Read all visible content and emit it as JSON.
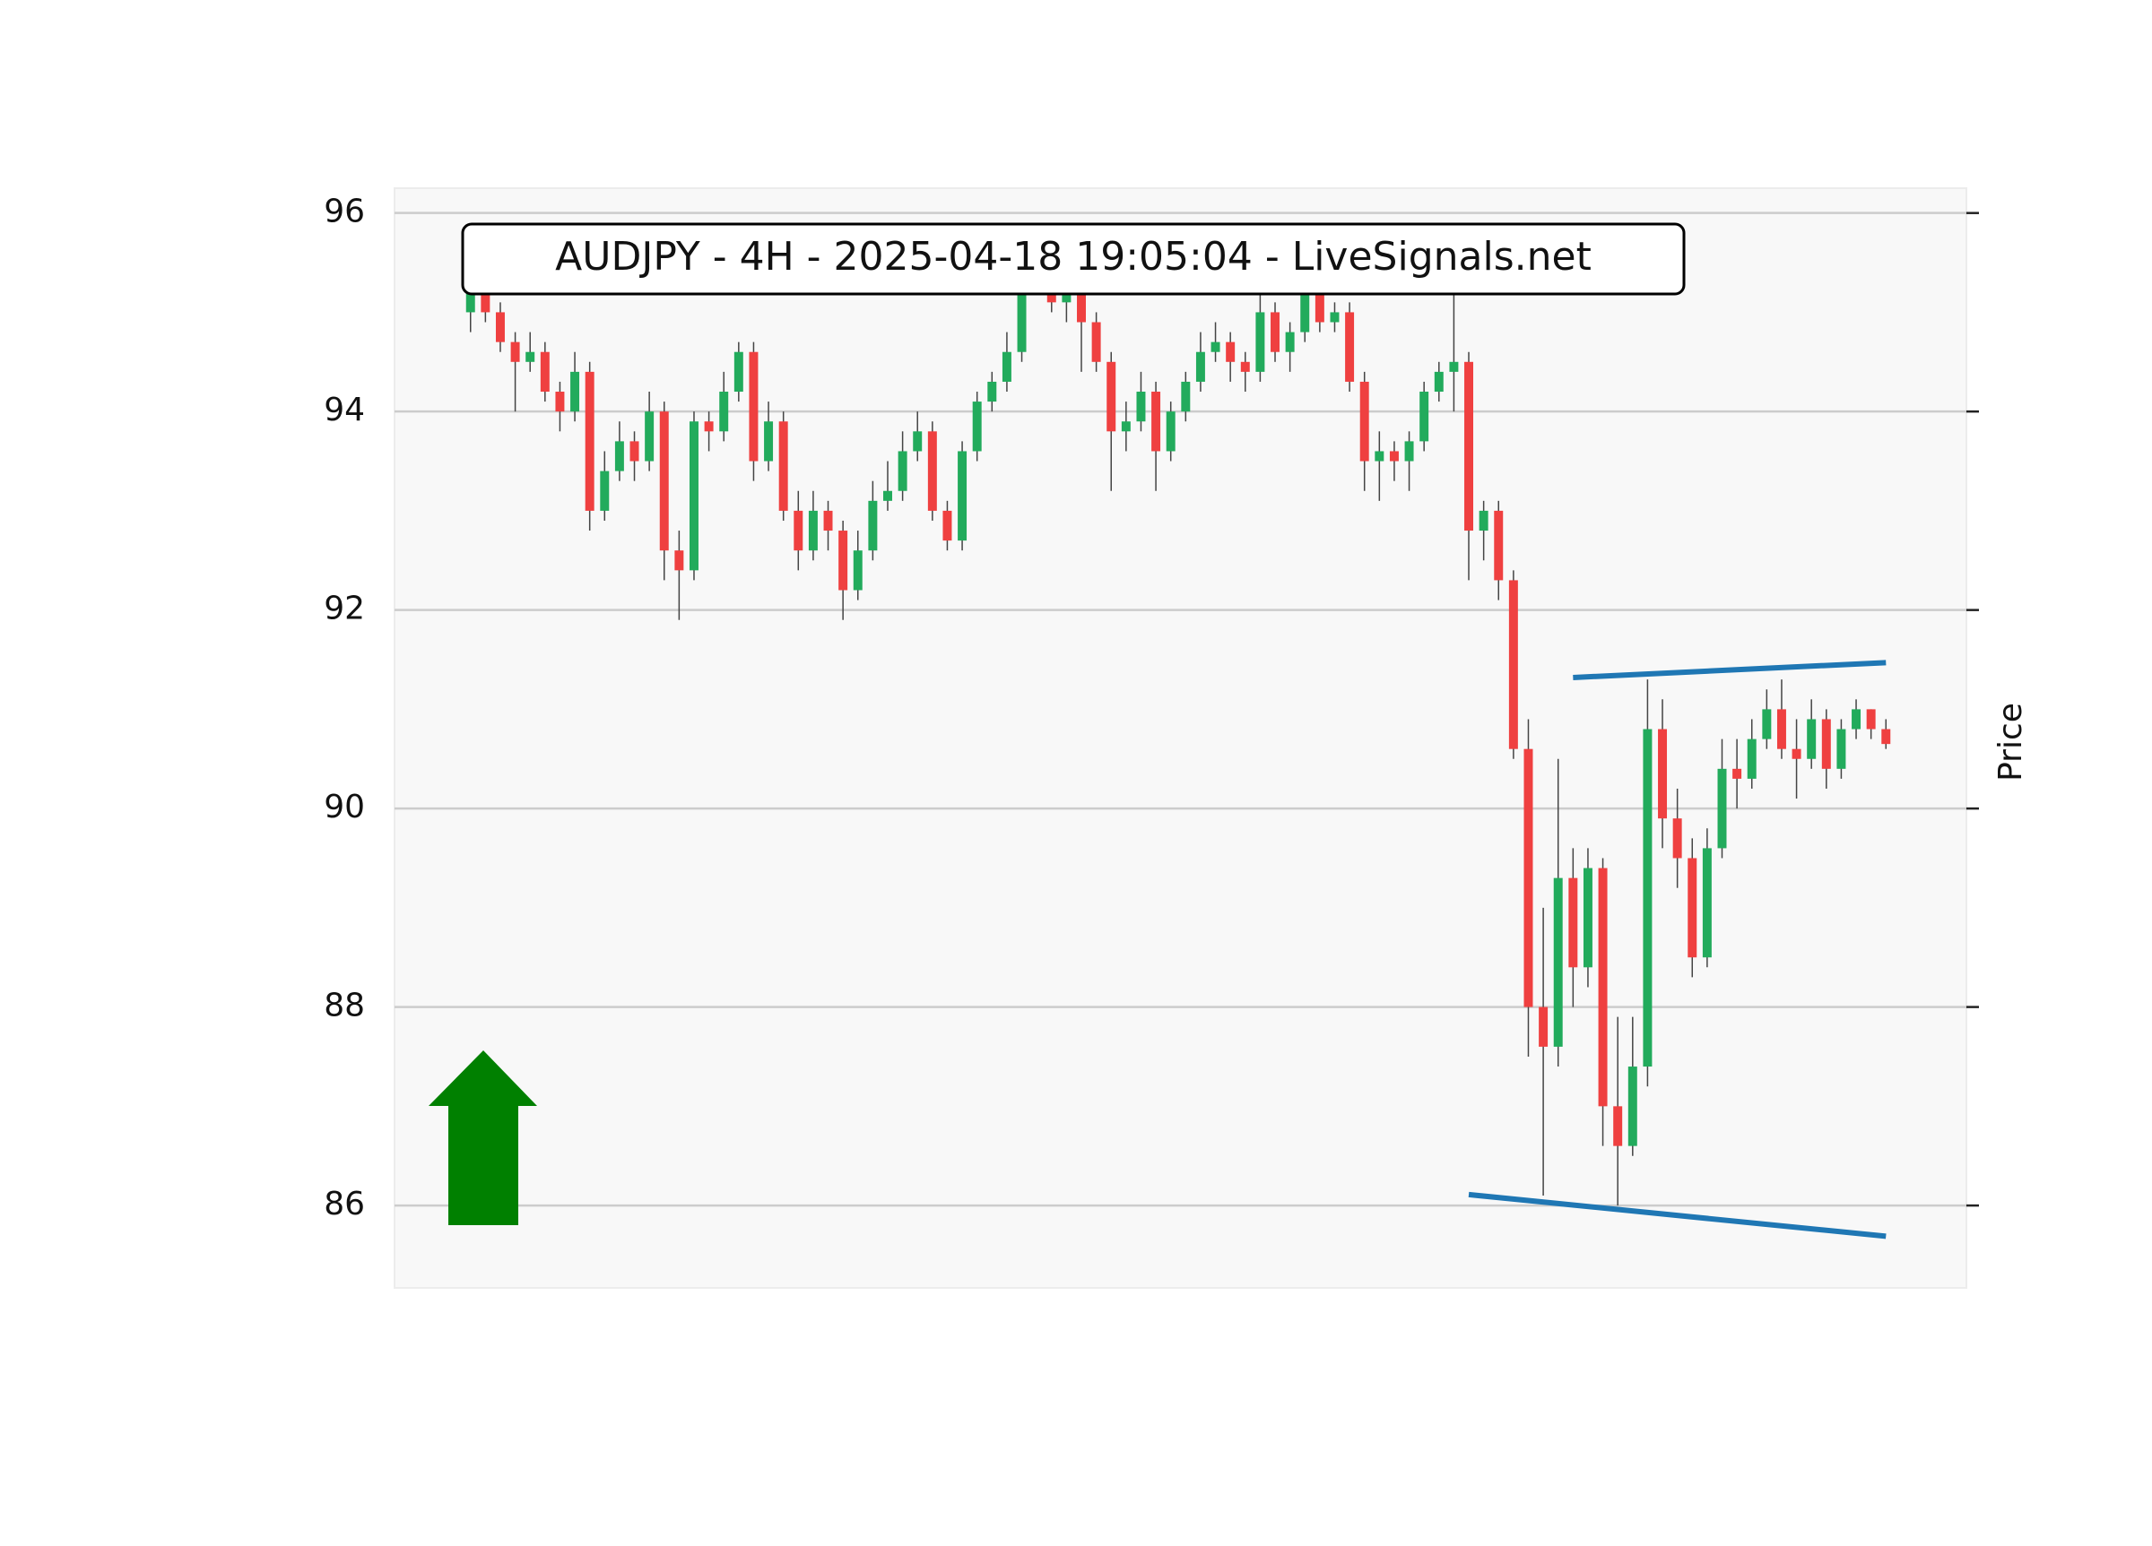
{
  "chart_data": {
    "type": "candlestick",
    "title": "AUDJPY - 4H - 2025-04-18 19:05:04 - LiveSignals.net",
    "y_label": "Price",
    "up_color": "#22ab5c",
    "down_color": "#ef4040",
    "ylim": [
      85.17,
      96.25
    ],
    "yticks": [
      86,
      88,
      90,
      92,
      94,
      96
    ],
    "xlim": [
      -5.1,
      100.4
    ],
    "grid": true,
    "ohlc": [
      [
        95.0,
        95.4,
        94.8,
        95.2
      ],
      [
        95.2,
        95.3,
        94.9,
        95.0
      ],
      [
        95.0,
        95.1,
        94.6,
        94.7
      ],
      [
        94.7,
        94.8,
        94.0,
        94.5
      ],
      [
        94.5,
        94.8,
        94.4,
        94.6
      ],
      [
        94.6,
        94.7,
        94.1,
        94.2
      ],
      [
        94.2,
        94.3,
        93.8,
        94.0
      ],
      [
        94.0,
        94.6,
        93.9,
        94.4
      ],
      [
        94.4,
        94.5,
        92.8,
        93.0
      ],
      [
        93.0,
        93.6,
        92.9,
        93.4
      ],
      [
        93.4,
        93.9,
        93.3,
        93.7
      ],
      [
        93.7,
        93.8,
        93.3,
        93.5
      ],
      [
        93.5,
        94.2,
        93.4,
        94.0
      ],
      [
        94.0,
        94.1,
        92.3,
        92.6
      ],
      [
        92.6,
        92.8,
        91.9,
        92.4
      ],
      [
        92.4,
        94.0,
        92.3,
        93.9
      ],
      [
        93.9,
        94.0,
        93.6,
        93.8
      ],
      [
        93.8,
        94.4,
        93.7,
        94.2
      ],
      [
        94.2,
        94.7,
        94.1,
        94.6
      ],
      [
        94.6,
        94.7,
        93.3,
        93.5
      ],
      [
        93.5,
        94.1,
        93.4,
        93.9
      ],
      [
        93.9,
        94.0,
        92.9,
        93.0
      ],
      [
        93.0,
        93.2,
        92.4,
        92.6
      ],
      [
        92.6,
        93.2,
        92.5,
        93.0
      ],
      [
        93.0,
        93.1,
        92.6,
        92.8
      ],
      [
        92.8,
        92.9,
        91.9,
        92.2
      ],
      [
        92.2,
        92.8,
        92.1,
        92.6
      ],
      [
        92.6,
        93.3,
        92.5,
        93.1
      ],
      [
        93.1,
        93.5,
        93.0,
        93.2
      ],
      [
        93.2,
        93.8,
        93.1,
        93.6
      ],
      [
        93.6,
        94.0,
        93.5,
        93.8
      ],
      [
        93.8,
        93.9,
        92.9,
        93.0
      ],
      [
        93.0,
        93.1,
        92.6,
        92.7
      ],
      [
        92.7,
        93.7,
        92.6,
        93.6
      ],
      [
        93.6,
        94.2,
        93.5,
        94.1
      ],
      [
        94.1,
        94.4,
        94.0,
        94.3
      ],
      [
        94.3,
        94.8,
        94.2,
        94.6
      ],
      [
        94.6,
        95.4,
        94.5,
        95.3
      ],
      [
        95.3,
        95.5,
        95.2,
        95.4
      ],
      [
        95.4,
        95.5,
        95.0,
        95.1
      ],
      [
        95.1,
        95.4,
        94.9,
        95.2
      ],
      [
        95.2,
        95.3,
        94.4,
        94.9
      ],
      [
        94.9,
        95.0,
        94.4,
        94.5
      ],
      [
        94.5,
        94.6,
        93.2,
        93.8
      ],
      [
        93.8,
        94.1,
        93.6,
        93.9
      ],
      [
        93.9,
        94.4,
        93.8,
        94.2
      ],
      [
        94.2,
        94.3,
        93.2,
        93.6
      ],
      [
        93.6,
        94.1,
        93.5,
        94.0
      ],
      [
        94.0,
        94.4,
        93.9,
        94.3
      ],
      [
        94.3,
        94.8,
        94.2,
        94.6
      ],
      [
        94.6,
        94.9,
        94.5,
        94.7
      ],
      [
        94.7,
        94.8,
        94.3,
        94.5
      ],
      [
        94.5,
        94.6,
        94.2,
        94.4
      ],
      [
        94.4,
        95.2,
        94.3,
        95.0
      ],
      [
        95.0,
        95.1,
        94.5,
        94.6
      ],
      [
        94.6,
        94.9,
        94.4,
        94.8
      ],
      [
        94.8,
        95.3,
        94.7,
        95.2
      ],
      [
        95.2,
        95.3,
        94.8,
        94.9
      ],
      [
        94.9,
        95.1,
        94.8,
        95.0
      ],
      [
        95.0,
        95.1,
        94.2,
        94.3
      ],
      [
        94.3,
        94.4,
        93.2,
        93.5
      ],
      [
        93.5,
        93.8,
        93.1,
        93.6
      ],
      [
        93.6,
        93.7,
        93.3,
        93.5
      ],
      [
        93.5,
        93.8,
        93.2,
        93.7
      ],
      [
        93.7,
        94.3,
        93.6,
        94.2
      ],
      [
        94.2,
        94.5,
        94.1,
        94.4
      ],
      [
        94.4,
        95.3,
        94.0,
        94.5
      ],
      [
        94.5,
        94.6,
        92.3,
        92.8
      ],
      [
        92.8,
        93.1,
        92.5,
        93.0
      ],
      [
        93.0,
        93.1,
        92.1,
        92.3
      ],
      [
        92.3,
        92.4,
        90.5,
        90.6
      ],
      [
        90.6,
        90.9,
        87.5,
        88.0
      ],
      [
        88.0,
        89.0,
        86.1,
        87.6
      ],
      [
        87.6,
        90.5,
        87.4,
        89.3
      ],
      [
        89.3,
        89.6,
        88.0,
        88.4
      ],
      [
        88.4,
        89.6,
        88.2,
        89.4
      ],
      [
        89.4,
        89.5,
        86.6,
        87.0
      ],
      [
        87.0,
        87.9,
        86.0,
        86.6
      ],
      [
        86.6,
        87.9,
        86.5,
        87.4
      ],
      [
        87.4,
        91.3,
        87.2,
        90.8
      ],
      [
        90.8,
        91.1,
        89.6,
        89.9
      ],
      [
        89.9,
        90.2,
        89.2,
        89.5
      ],
      [
        89.5,
        89.7,
        88.3,
        88.5
      ],
      [
        88.5,
        89.8,
        88.4,
        89.6
      ],
      [
        89.6,
        90.7,
        89.5,
        90.4
      ],
      [
        90.4,
        90.7,
        90.0,
        90.3
      ],
      [
        90.3,
        90.9,
        90.2,
        90.7
      ],
      [
        90.7,
        91.2,
        90.6,
        91.0
      ],
      [
        91.0,
        91.3,
        90.5,
        90.6
      ],
      [
        90.6,
        90.9,
        90.1,
        90.5
      ],
      [
        90.5,
        91.1,
        90.4,
        90.9
      ],
      [
        90.9,
        91.0,
        90.2,
        90.4
      ],
      [
        90.4,
        90.9,
        90.3,
        90.8
      ],
      [
        90.8,
        91.1,
        90.7,
        91.0
      ],
      [
        91.0,
        91.0,
        90.7,
        90.8
      ],
      [
        90.8,
        90.9,
        90.6,
        90.65
      ]
    ],
    "trendlines": [
      {
        "color": "#1f77b4",
        "x": [
          74,
          95
        ],
        "y": [
          91.32,
          91.47
        ]
      },
      {
        "color": "#1f77b4",
        "x": [
          67,
          95
        ],
        "y": [
          86.11,
          85.69
        ]
      }
    ]
  }
}
